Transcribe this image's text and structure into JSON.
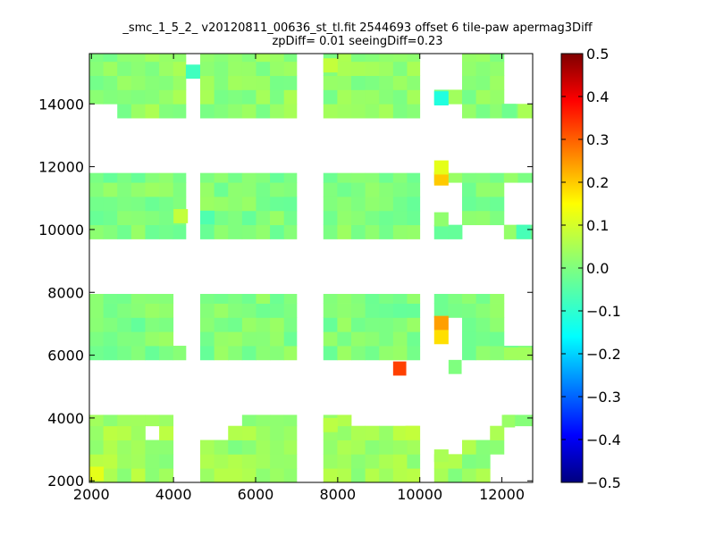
{
  "chart_data": {
    "type": "heatmap",
    "title_line1": "_smc_1_5_2_ v20120811_00636_st_tl.fit 2544693 offset 6 tile-paw apermag3Diff",
    "title_line2": "zpDiff= 0.01 seeingDiff=0.23",
    "xlabel": "",
    "ylabel": "",
    "xlim": [
      1950,
      12750
    ],
    "ylim": [
      1950,
      15600
    ],
    "x_ticks": [
      2000,
      4000,
      6000,
      8000,
      10000,
      12000
    ],
    "x_tick_labels": [
      "2000",
      "4000",
      "6000",
      "8000",
      "10000",
      "12000"
    ],
    "y_ticks": [
      2000,
      4000,
      6000,
      8000,
      10000,
      12000,
      14000
    ],
    "y_tick_labels": [
      "2000",
      "4000",
      "6000",
      "8000",
      "10000",
      "12000",
      "14000"
    ],
    "colorbar": {
      "colormap": "jet",
      "vmin": -0.5,
      "vmax": 0.5,
      "ticks": [
        0.5,
        0.4,
        0.3,
        0.2,
        0.1,
        0.0,
        -0.1,
        -0.2,
        -0.3,
        -0.4,
        -0.5
      ],
      "tick_labels": [
        "0.5",
        "0.4",
        "0.3",
        "0.2",
        "0.1",
        "0.0",
        "−0.1",
        "−0.2",
        "−0.3",
        "−0.4",
        "−0.5"
      ]
    },
    "cell_size": [
      340,
      450
    ],
    "blocks": [
      {
        "x": [
          1950,
          4300
        ],
        "y": [
          13550,
          15600
        ],
        "base": 0.02
      },
      {
        "x": [
          4650,
          7000
        ],
        "y": [
          13550,
          15600
        ],
        "base": 0.02
      },
      {
        "x": [
          7650,
          10000
        ],
        "y": [
          13550,
          15600
        ],
        "base": 0.02
      },
      {
        "x": [
          10350,
          12750
        ],
        "y": [
          13550,
          15600
        ],
        "base": 0.02
      },
      {
        "x": [
          1950,
          4300
        ],
        "y": [
          9700,
          11800
        ],
        "base": 0.0
      },
      {
        "x": [
          4650,
          7000
        ],
        "y": [
          9700,
          11800
        ],
        "base": 0.0
      },
      {
        "x": [
          7650,
          10000
        ],
        "y": [
          9700,
          11800
        ],
        "base": 0.0
      },
      {
        "x": [
          10350,
          12750
        ],
        "y": [
          9700,
          11800
        ],
        "base": 0.0
      },
      {
        "x": [
          1950,
          4300
        ],
        "y": [
          5850,
          7950
        ],
        "base": 0.0
      },
      {
        "x": [
          4650,
          7000
        ],
        "y": [
          5850,
          7950
        ],
        "base": 0.0
      },
      {
        "x": [
          7650,
          10000
        ],
        "y": [
          5850,
          7950
        ],
        "base": 0.0
      },
      {
        "x": [
          10350,
          12750
        ],
        "y": [
          5850,
          7950
        ],
        "base": 0.0
      },
      {
        "x": [
          1950,
          4300
        ],
        "y": [
          1950,
          4100
        ],
        "base": 0.04
      },
      {
        "x": [
          4650,
          7000
        ],
        "y": [
          1950,
          4100
        ],
        "base": 0.03
      },
      {
        "x": [
          7650,
          10000
        ],
        "y": [
          1950,
          4100
        ],
        "base": 0.04
      },
      {
        "x": [
          10350,
          12750
        ],
        "y": [
          1950,
          4100
        ],
        "base": 0.03
      }
    ],
    "holes": [
      {
        "x": [
          4300,
          4650
        ],
        "y": [
          13550,
          14000
        ]
      },
      {
        "x": [
          1950,
          2300
        ],
        "y": [
          13550,
          13900
        ]
      },
      {
        "x": [
          12050,
          12750
        ],
        "y": [
          13900,
          15600
        ]
      },
      {
        "x": [
          10350,
          10700
        ],
        "y": [
          14350,
          15600
        ]
      },
      {
        "x": [
          10350,
          10700
        ],
        "y": [
          13550,
          13950
        ]
      },
      {
        "x": [
          12050,
          12750
        ],
        "y": [
          10100,
          11400
        ]
      },
      {
        "x": [
          10350,
          10700
        ],
        "y": [
          10100,
          11400
        ]
      },
      {
        "x": [
          10700,
          12050
        ],
        "y": [
          9700,
          10100
        ]
      },
      {
        "x": [
          4300,
          4650
        ],
        "y": [
          7950,
          6250
        ]
      },
      {
        "x": [
          3950,
          4300
        ],
        "y": [
          6250,
          7950
        ]
      },
      {
        "x": [
          10350,
          10700
        ],
        "y": [
          5850,
          7200
        ]
      },
      {
        "x": [
          12050,
          12750
        ],
        "y": [
          6250,
          7950
        ]
      },
      {
        "x": [
          3950,
          4300
        ],
        "y": [
          1950,
          4100
        ]
      },
      {
        "x": [
          3300,
          3650
        ],
        "y": [
          3050,
          3500
        ]
      },
      {
        "x": [
          4650,
          5000
        ],
        "y": [
          3300,
          4100
        ]
      },
      {
        "x": [
          5000,
          5350
        ],
        "y": [
          3650,
          4100
        ]
      },
      {
        "x": [
          8000,
          8350
        ],
        "y": [
          3550,
          4100
        ]
      },
      {
        "x": [
          8350,
          10000
        ],
        "y": [
          3650,
          4100
        ]
      },
      {
        "x": [
          10350,
          10700
        ],
        "y": [
          2700,
          4100
        ]
      },
      {
        "x": [
          11700,
          12050
        ],
        "y": [
          3650,
          4100
        ]
      },
      {
        "x": [
          12050,
          12750
        ],
        "y": [
          1950,
          3650
        ]
      },
      {
        "x": [
          11700,
          12050
        ],
        "y": [
          1950,
          2700
        ]
      },
      {
        "x": [
          10700,
          11700
        ],
        "y": [
          3300,
          4100
        ]
      }
    ],
    "extra_cells": [
      {
        "x": 9350,
        "y": 5350,
        "w": 320,
        "h": 450,
        "value": 0.33
      },
      {
        "x": 10700,
        "y": 5400,
        "w": 320,
        "h": 450,
        "value": 0.0
      },
      {
        "x": 12050,
        "y": 5850,
        "w": 700,
        "h": 400,
        "value": 0.04
      },
      {
        "x": 12000,
        "y": 3700,
        "w": 320,
        "h": 400,
        "value": 0.03
      },
      {
        "x": 10350,
        "y": 2600,
        "w": 350,
        "h": 400,
        "value": 0.05
      }
    ],
    "highlights": [
      {
        "x": 10350,
        "y": 13950,
        "value": -0.12
      },
      {
        "x": 4300,
        "y": 14800,
        "value": -0.08
      },
      {
        "x": 10350,
        "y": 11400,
        "value": 0.2
      },
      {
        "x": 10350,
        "y": 11750,
        "value": 0.12
      },
      {
        "x": 10350,
        "y": 6800,
        "value": 0.24
      },
      {
        "x": 10350,
        "y": 6350,
        "value": 0.18
      },
      {
        "x": 10350,
        "y": 10100,
        "value": 0.02
      },
      {
        "x": 4650,
        "y": 10150,
        "value": -0.06
      },
      {
        "x": 4000,
        "y": 10200,
        "value": 0.08
      },
      {
        "x": 12350,
        "y": 9700,
        "value": -0.07
      },
      {
        "x": 1950,
        "y": 2000,
        "value": 0.12
      },
      {
        "x": 9650,
        "y": 3300,
        "value": 0.08
      },
      {
        "x": 7650,
        "y": 15000,
        "value": 0.08
      },
      {
        "x": 7650,
        "y": 3550,
        "value": 0.07
      },
      {
        "x": 12000,
        "y": 13550,
        "value": -0.02
      }
    ]
  }
}
